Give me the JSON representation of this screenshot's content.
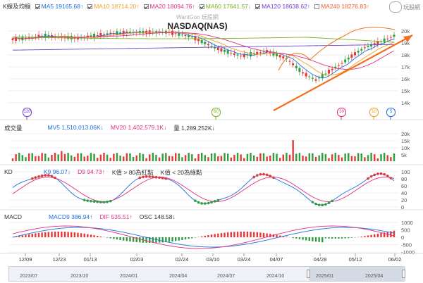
{
  "legend": [
    {
      "label": "K線及均線",
      "color": "#333333",
      "checked": true,
      "cb": false
    },
    {
      "label": "MA5 19165.68↑",
      "color": "#1f6fe0",
      "checked": true,
      "cb": true
    },
    {
      "label": "MA10 18714.20↑",
      "color": "#f0a020",
      "checked": true,
      "cb": true
    },
    {
      "label": "MA20 18094.76↑",
      "color": "#e0307e",
      "checked": true,
      "cb": true
    },
    {
      "label": "MA60 17641.57↓",
      "color": "#7cb020",
      "checked": true,
      "cb": true
    },
    {
      "label": "MA120 18638.62↑",
      "color": "#7040d0",
      "checked": true,
      "cb": true
    },
    {
      "label": "MA240 18276.83↑",
      "color": "#f06030",
      "checked": false,
      "cb": true
    }
  ],
  "logo_text": "玩股網",
  "watermark": "WantGoo 玩股網",
  "title": "NASDAQ(NAS)",
  "price_axis": [
    "20k",
    "19k",
    "18k",
    "17k",
    "16k",
    "15k",
    "14k"
  ],
  "markers": [
    {
      "label": "120",
      "color": "#7040d0"
    },
    {
      "label": "60",
      "color": "#7cb020"
    },
    {
      "label": "20",
      "color": "#e0307e"
    },
    {
      "label": "10",
      "color": "#f0a020"
    },
    {
      "label": "5",
      "color": "#1f6fe0"
    }
  ],
  "volume": {
    "title": "成交量",
    "mv5": "MV5 1,510,013.06K↓",
    "mv20": "MV20 1,402,579.1K↓",
    "vol": "量 1,289,252K↓",
    "axis": [
      "20k",
      "15k",
      "10k",
      "5k"
    ]
  },
  "kd": {
    "title": "KD",
    "k9": "K9 96.07↓",
    "d9": "D9 94.73↑",
    "note1": "K值 > 80為紅點",
    "note2": "K值 < 20為綠點",
    "axis": [
      "100",
      "80",
      "60",
      "40",
      "20",
      "0"
    ]
  },
  "macd": {
    "title": "MACD",
    "macd9": "MACD9 386.94↑",
    "dif": "DIF 535.51↑",
    "osc": "OSC 148.58↓",
    "axis": [
      "1000",
      "500",
      "0",
      "-500",
      "-1000"
    ]
  },
  "dates": [
    "12/09",
    "12/23",
    "01/13",
    "02/03",
    "02/24",
    "03/10",
    "03/24",
    "04/07",
    "04/28",
    "05/12",
    "06/02"
  ],
  "navigator": [
    "2023/07",
    "2023/10",
    "2024/01",
    "2024/04",
    "2024/07",
    "2024/10",
    "2025/01",
    "2025/04"
  ],
  "colors": {
    "up": "#e53935",
    "down": "#2e9e3e",
    "k": "#1f6fe0",
    "d": "#e0307e"
  }
}
